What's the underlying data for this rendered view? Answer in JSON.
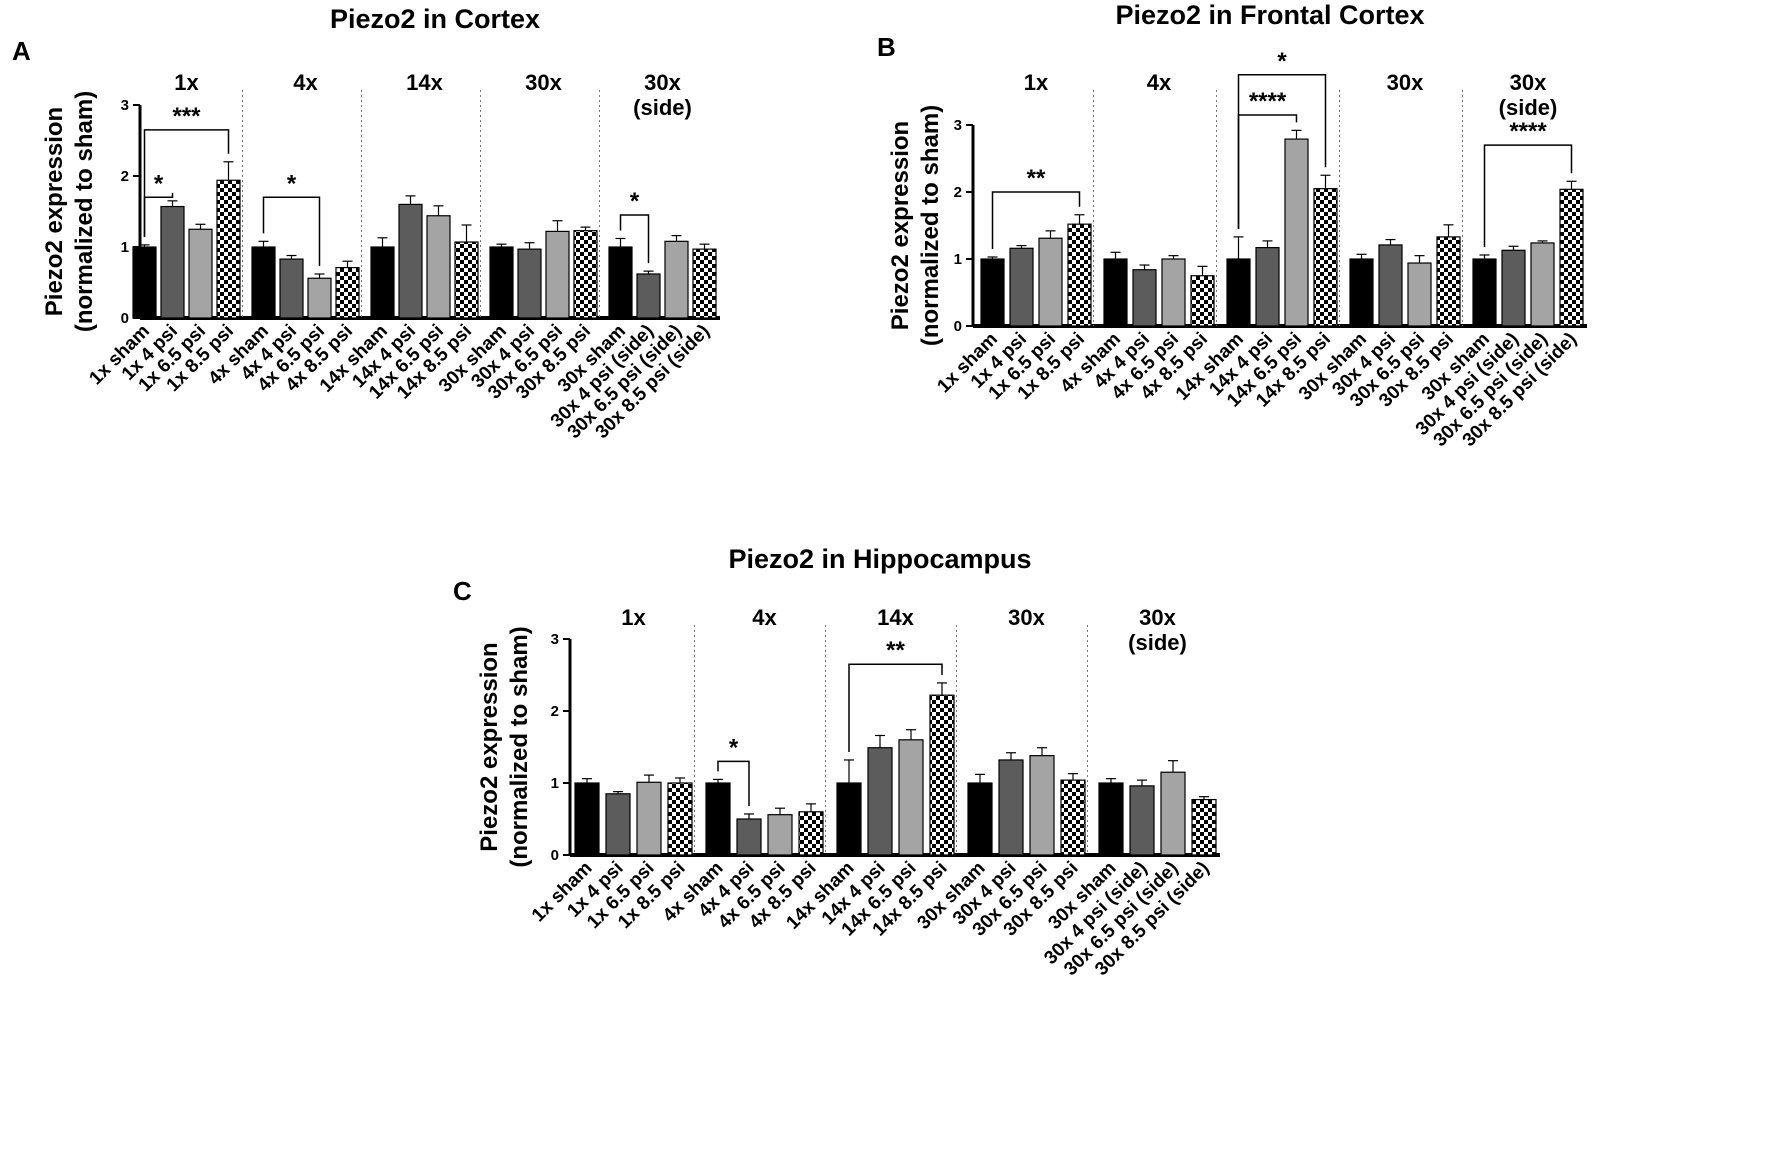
{
  "figure": {
    "groups": [
      "1x",
      "4x",
      "14x",
      "30x",
      "30x\n(side)"
    ],
    "fills": {
      "sham": "#000000",
      "4 psi": "#5c5c5c",
      "6.5 psi": "#a4a4a4",
      "8.5 psi": "checker"
    }
  },
  "chart_data": [
    {
      "panel": "A",
      "type": "bar",
      "title": "Piezo2 in Cortex",
      "ylabel": "Piezo2 expression\n(normalized to sham)",
      "ylim": [
        0,
        3
      ],
      "yticks": [
        0,
        1,
        2,
        3
      ],
      "groups": [
        "1x",
        "4x",
        "14x",
        "30x",
        "30x\n(side)"
      ],
      "categories": [
        "1x sham",
        "1x 4 psi",
        "1x 6.5 psi",
        "1x 8.5 psi",
        "4x sham",
        "4x 4 psi",
        "4x 6.5 psi",
        "4x 8.5 psi",
        "14x sham",
        "14x 4 psi",
        "14x 6.5 psi",
        "14x 8.5 psi",
        "30x sham",
        "30x 4 psi",
        "30x 6.5 psi",
        "30x 8.5 psi",
        "30x sham",
        "30x 4 psi (side)",
        "30x 6.5 psi (side)",
        "30x 8.5 psi (side)"
      ],
      "values": [
        1.0,
        1.57,
        1.25,
        1.94,
        1.0,
        0.83,
        0.56,
        0.71,
        1.0,
        1.6,
        1.44,
        1.07,
        1.0,
        0.97,
        1.22,
        1.23,
        1.0,
        0.62,
        1.08,
        0.97
      ],
      "errors": [
        0.03,
        0.08,
        0.07,
        0.26,
        0.08,
        0.05,
        0.06,
        0.09,
        0.13,
        0.12,
        0.14,
        0.24,
        0.04,
        0.09,
        0.15,
        0.05,
        0.12,
        0.04,
        0.08,
        0.07
      ],
      "significance": [
        {
          "group": 0,
          "from": 0,
          "to": 1,
          "label": "*",
          "y": 1.7
        },
        {
          "group": 0,
          "from": 0,
          "to": 3,
          "label": "***",
          "y": 2.65
        },
        {
          "group": 1,
          "from": 0,
          "to": 2,
          "label": "*",
          "y": 1.7
        },
        {
          "group": 4,
          "from": 0,
          "to": 1,
          "label": "*",
          "y": 1.45
        }
      ]
    },
    {
      "panel": "B",
      "type": "bar",
      "title": "Piezo2 in Frontal Cortex",
      "ylabel": "Piezo2 expression\n(normalized to sham)",
      "ylim": [
        0,
        3
      ],
      "yticks": [
        0,
        1,
        2,
        3
      ],
      "groups": [
        "1x",
        "4x",
        "",
        "30x",
        "30x\n(side)"
      ],
      "categories": [
        "1x sham",
        "1x 4 psi",
        "1x 6.5 psi",
        "1x 8.5 psi",
        "4x sham",
        "4x 4 psi",
        "4x 6.5 psi",
        "4x 8.5 psi",
        "14x sham",
        "14x 4 psi",
        "14x 6.5 psi",
        "14x 8.5 psi",
        "30x sham",
        "30x 4 psi",
        "30x 6.5 psi",
        "30x 8.5 psi",
        "30x sham",
        "30x 4 psi (side)",
        "30x 6.5 psi (side)",
        "30x 8.5 psi (side)"
      ],
      "values": [
        1.0,
        1.16,
        1.31,
        1.52,
        1.0,
        0.84,
        1.0,
        0.75,
        1.0,
        1.17,
        2.79,
        2.05,
        1.0,
        1.21,
        0.94,
        1.33,
        1.0,
        1.13,
        1.24,
        2.04
      ],
      "errors": [
        0.03,
        0.04,
        0.11,
        0.14,
        0.1,
        0.07,
        0.05,
        0.14,
        0.33,
        0.1,
        0.13,
        0.2,
        0.07,
        0.08,
        0.11,
        0.18,
        0.06,
        0.06,
        0.03,
        0.12
      ],
      "significance": [
        {
          "group": 0,
          "from": 0,
          "to": 3,
          "label": "**",
          "y": 2.0
        },
        {
          "group": 2,
          "from": 0,
          "to": 2,
          "label": "****",
          "y": 3.15
        },
        {
          "group": 2,
          "from": 0,
          "to": 3,
          "label": "*",
          "y": 3.75
        },
        {
          "group": 4,
          "from": 0,
          "to": 3,
          "label": "****",
          "y": 2.7
        }
      ]
    },
    {
      "panel": "C",
      "type": "bar",
      "title": "Piezo2 in Hippocampus",
      "ylabel": "Piezo2 expression\n(normalized to sham)",
      "ylim": [
        0,
        3
      ],
      "yticks": [
        0,
        1,
        2,
        3
      ],
      "groups": [
        "1x",
        "4x",
        "14x",
        "30x",
        "30x\n(side)"
      ],
      "categories": [
        "1x sham",
        "1x 4 psi",
        "1x 6.5 psi",
        "1x 8.5 psi",
        "4x sham",
        "4x 4 psi",
        "4x 6.5 psi",
        "4x 8.5 psi",
        "14x sham",
        "14x 4 psi",
        "14x 6.5 psi",
        "14x 8.5 psi",
        "30x sham",
        "30x 4 psi",
        "30x 6.5 psi",
        "30x 8.5 psi",
        "30x sham",
        "30x 4 psi (side)",
        "30x 6.5 psi (side)",
        "30x 8.5 psi (side)"
      ],
      "values": [
        1.0,
        0.85,
        1.01,
        1.0,
        1.0,
        0.5,
        0.56,
        0.6,
        1.0,
        1.49,
        1.6,
        2.22,
        1.0,
        1.32,
        1.38,
        1.04,
        1.0,
        0.96,
        1.15,
        0.77
      ],
      "errors": [
        0.06,
        0.03,
        0.1,
        0.07,
        0.05,
        0.07,
        0.09,
        0.11,
        0.32,
        0.17,
        0.14,
        0.17,
        0.12,
        0.1,
        0.11,
        0.09,
        0.06,
        0.08,
        0.16,
        0.04
      ],
      "significance": [
        {
          "group": 1,
          "from": 0,
          "to": 1,
          "label": "*",
          "y": 1.3
        },
        {
          "group": 2,
          "from": 0,
          "to": 3,
          "label": "**",
          "y": 2.65
        }
      ]
    }
  ]
}
